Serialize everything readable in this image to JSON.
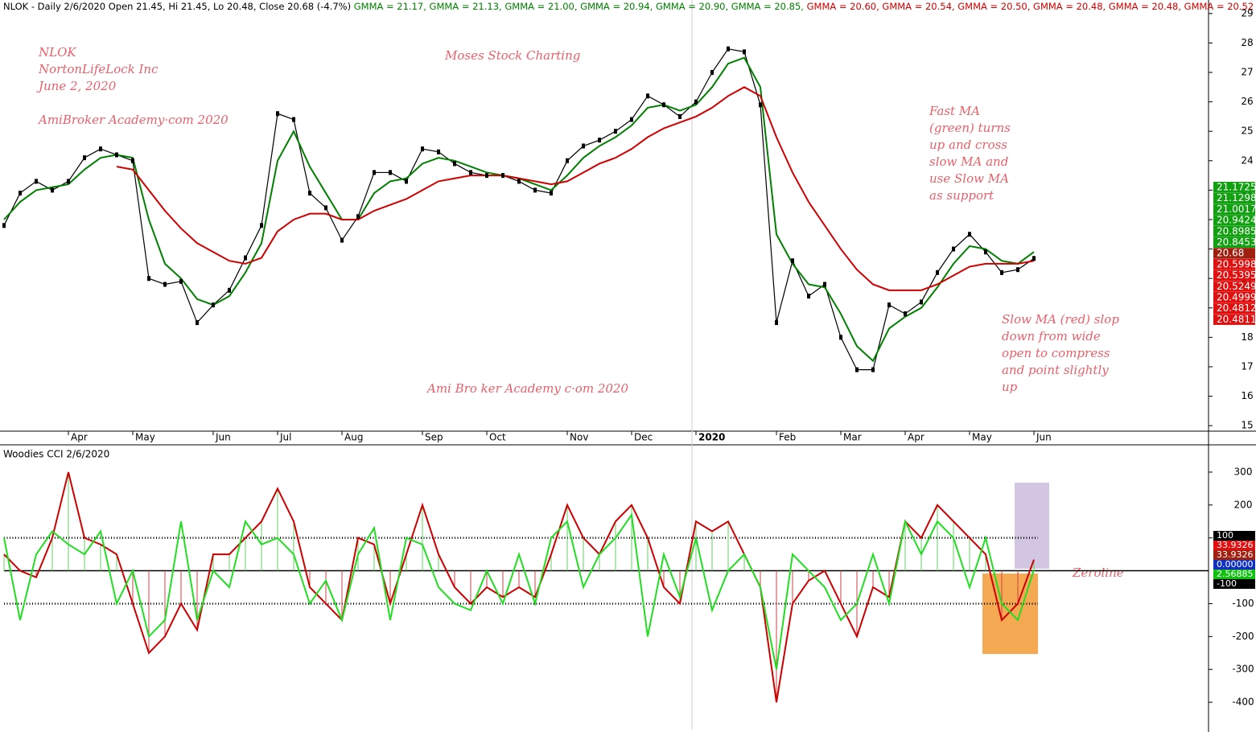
{
  "chart_data": [
    {
      "type": "line",
      "title_parts": [
        {
          "text": "NLOK - Daily 2/6/2020 Open 21.45, Hi 21.45, Lo 20.48, Close 20.68 (-4.7%)",
          "color": "#000000"
        },
        {
          "text": "GMMA = 21.17,",
          "color": "#008000"
        },
        {
          "text": "GMMA = 21.13,",
          "color": "#008000"
        },
        {
          "text": "GMMA = 21.00,",
          "color": "#008000"
        },
        {
          "text": "GMMA = 20.94,",
          "color": "#008000"
        },
        {
          "text": "GMMA = 20.90,",
          "color": "#008000"
        },
        {
          "text": "GMMA = 20.85,",
          "color": "#008000"
        },
        {
          "text": "GMMA = 20.60,",
          "color": "#d00000"
        },
        {
          "text": "GMMA = 20.54,",
          "color": "#d00000"
        },
        {
          "text": "GMMA = 20.50,",
          "color": "#d00000"
        },
        {
          "text": "GMMA = 20.48,",
          "color": "#d00000"
        },
        {
          "text": "GMMA = 20.48,",
          "color": "#d00000"
        },
        {
          "text": "GMMA = 20.52",
          "color": "#d00000"
        }
      ],
      "annotations": [
        "NLOK",
        "NortonLifeLock Inc",
        "June 2, 2020",
        "AmiBroker Academy·com  2020",
        "Moses Stock Charting",
        "Ami Bro ker Academy c·om 2020",
        "Fast MA",
        "(green) turns",
        "up and cross",
        "slow MA and",
        "use Slow MA",
        "as support",
        "Slow MA (red) slop",
        "down from wide",
        "open to compress",
        "and point slightly",
        "up"
      ],
      "categories": [
        null,
        null,
        null,
        null,
        "Apr",
        null,
        null,
        null,
        "May",
        null,
        null,
        null,
        null,
        "Jun",
        null,
        null,
        null,
        "Jul",
        null,
        null,
        null,
        "Aug",
        null,
        null,
        null,
        null,
        "Sep",
        null,
        null,
        null,
        "Oct",
        null,
        null,
        null,
        null,
        "Nov",
        null,
        null,
        null,
        "Dec",
        null,
        null,
        null,
        "2020",
        null,
        null,
        null,
        null,
        "Feb",
        null,
        null,
        null,
        "Mar",
        null,
        null,
        null,
        "Apr",
        null,
        null,
        null,
        "May",
        null,
        null,
        null,
        "Jun"
      ],
      "series": [
        {
          "color": "#000000",
          "values": [
            21.8,
            22.9,
            23.3,
            23.0,
            23.3,
            24.1,
            24.4,
            24.2,
            24.0,
            20.0,
            19.8,
            19.9,
            18.5,
            19.1,
            19.6,
            20.7,
            21.8,
            25.6,
            25.4,
            22.9,
            22.4,
            21.3,
            22.1,
            23.6,
            23.6,
            23.3,
            24.4,
            24.3,
            23.9,
            23.6,
            23.5,
            23.5,
            23.3,
            23.0,
            22.9,
            24.0,
            24.5,
            24.7,
            25.0,
            25.4,
            26.2,
            25.9,
            25.5,
            26.0,
            27.0,
            27.8,
            27.7,
            25.9,
            18.5,
            20.6,
            19.4,
            19.8,
            18.0,
            16.9,
            16.9,
            19.1,
            18.8,
            19.2,
            20.2,
            21.0,
            21.5,
            20.9,
            20.2,
            20.3,
            20.68
          ]
        },
        {
          "color": "#008000",
          "values": [
            22.0,
            22.6,
            23.0,
            23.1,
            23.2,
            23.7,
            24.1,
            24.2,
            24.1,
            22.0,
            20.5,
            20.0,
            19.3,
            19.1,
            19.4,
            20.2,
            21.2,
            24.0,
            25.0,
            23.8,
            22.9,
            22.0,
            22.0,
            22.9,
            23.3,
            23.4,
            23.9,
            24.1,
            24.0,
            23.8,
            23.6,
            23.5,
            23.4,
            23.2,
            23.0,
            23.5,
            24.1,
            24.5,
            24.8,
            25.2,
            25.8,
            25.9,
            25.7,
            25.9,
            26.5,
            27.3,
            27.5,
            26.5,
            21.5,
            20.5,
            19.8,
            19.7,
            18.8,
            17.7,
            17.2,
            18.3,
            18.7,
            19.0,
            19.7,
            20.5,
            21.1,
            21.0,
            20.6,
            20.5,
            20.9
          ]
        },
        {
          "color": "#d00000",
          "values": [
            null,
            null,
            null,
            null,
            null,
            null,
            null,
            23.8,
            23.7,
            23.0,
            22.3,
            21.7,
            21.2,
            20.9,
            20.6,
            20.5,
            20.7,
            21.6,
            22.0,
            22.2,
            22.2,
            22.0,
            22.0,
            22.3,
            22.5,
            22.7,
            23.0,
            23.3,
            23.4,
            23.5,
            23.5,
            23.5,
            23.4,
            23.3,
            23.2,
            23.3,
            23.6,
            23.9,
            24.1,
            24.4,
            24.8,
            25.1,
            25.3,
            25.5,
            25.8,
            26.2,
            26.5,
            26.2,
            24.8,
            23.6,
            22.6,
            21.8,
            21.0,
            20.3,
            19.8,
            19.6,
            19.6,
            19.6,
            19.8,
            20.1,
            20.4,
            20.5,
            20.5,
            20.5,
            20.6
          ]
        }
      ],
      "ylim": [
        14.84,
        29.46
      ],
      "yticks": [
        15,
        16,
        17,
        18,
        19,
        20,
        21,
        22,
        23,
        24,
        25,
        26,
        27,
        28,
        29
      ],
      "price_tags": [
        {
          "value": 21.1725,
          "color": "#10a010"
        },
        {
          "value": 21.1298,
          "color": "#10a010"
        },
        {
          "value": 21.0017,
          "color": "#10a010"
        },
        {
          "value": 20.9424,
          "color": "#10a010"
        },
        {
          "value": 20.8985,
          "color": "#10a010"
        },
        {
          "value": 20.8453,
          "color": "#10a010"
        },
        {
          "value": 20.68,
          "color": "#a02010"
        },
        {
          "value": 20.5998,
          "color": "#e01010"
        },
        {
          "value": 20.5395,
          "color": "#e01010"
        },
        {
          "value": 20.5249,
          "color": "#e01010"
        },
        {
          "value": 20.4999,
          "color": "#e01010"
        },
        {
          "value": 20.4812,
          "color": "#e01010"
        },
        {
          "value": 20.4811,
          "color": "#e01010"
        }
      ]
    },
    {
      "type": "line",
      "title": "Woodies CCI  2/6/2020",
      "annotations": [
        "Zeroline"
      ],
      "series": [
        {
          "color": "#cc0000",
          "values": [
            50,
            0,
            -20,
            100,
            300,
            100,
            80,
            50,
            -100,
            -250,
            -200,
            -100,
            -180,
            50,
            50,
            100,
            150,
            250,
            150,
            -50,
            -100,
            -150,
            100,
            80,
            -100,
            50,
            200,
            50,
            -50,
            -100,
            -50,
            -80,
            -50,
            -80,
            50,
            200,
            100,
            50,
            150,
            200,
            100,
            -50,
            -100,
            150,
            120,
            150,
            50,
            -50,
            -400,
            -100,
            -30,
            0,
            -100,
            -200,
            -50,
            -80,
            150,
            100,
            200,
            150,
            100,
            50,
            -150,
            -100,
            34
          ]
        },
        {
          "color": "#22dd22",
          "values": [
            100,
            -150,
            50,
            120,
            80,
            50,
            120,
            -100,
            0,
            -200,
            -150,
            150,
            -150,
            0,
            -50,
            150,
            80,
            100,
            50,
            -100,
            -30,
            -150,
            50,
            130,
            -150,
            100,
            80,
            -50,
            -100,
            -120,
            0,
            -100,
            50,
            -100,
            100,
            150,
            -50,
            50,
            100,
            170,
            -200,
            50,
            -80,
            100,
            -120,
            0,
            50,
            -50,
            -300,
            50,
            0,
            -50,
            -150,
            -100,
            50,
            -100,
            150,
            50,
            150,
            100,
            -50,
            100,
            -100,
            -150,
            3
          ]
        }
      ],
      "ylim": [
        -483,
        383
      ],
      "yticks": [
        -400,
        -300,
        -200,
        -100,
        100,
        200,
        300
      ],
      "levels": [
        100,
        -100
      ],
      "tags": [
        {
          "value": 100,
          "color": "#000000"
        },
        {
          "value": 33.9326,
          "color": "#e01010"
        },
        {
          "value": 33.9326,
          "color": "#a02010"
        },
        {
          "value": 0,
          "label": "0.00000",
          "color": "#1030c0"
        },
        {
          "value": 2.56885,
          "color": "#10c010"
        },
        {
          "value": -100,
          "color": "#000000"
        }
      ]
    }
  ]
}
